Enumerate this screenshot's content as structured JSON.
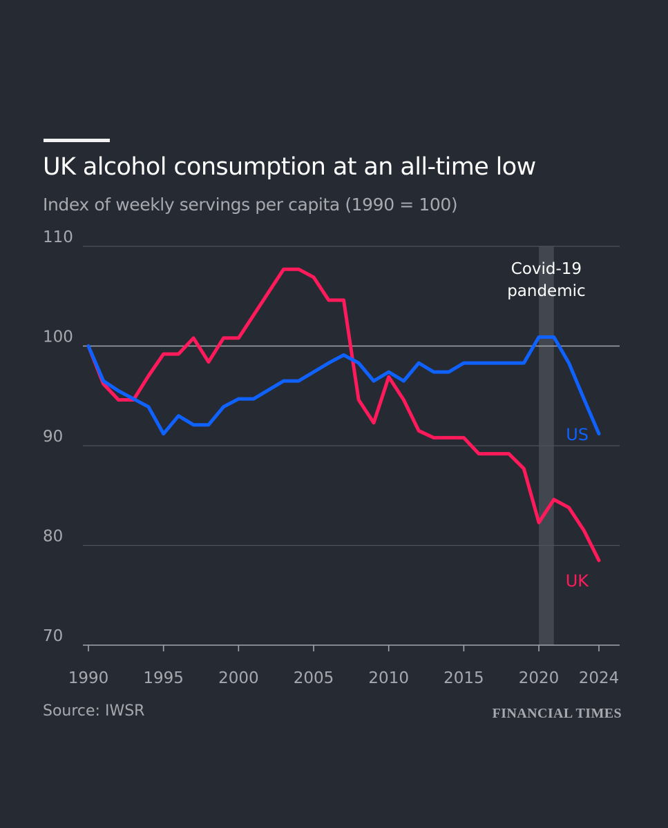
{
  "header": {
    "title": "UK alcohol consumption at an all-time low",
    "subtitle": "Index of weekly servings per capita (1990 = 100)"
  },
  "footer": {
    "source": "Source: IWSR",
    "brand": "FINANCIAL TIMES"
  },
  "colors": {
    "background": "#262a33",
    "uk": "#ff1a5c",
    "us": "#0f62fe",
    "grid": "#4e525b",
    "baseline": "#a3a6ac",
    "shade": "#42464e",
    "tick_text": "#a7a9af",
    "annotation_text": "#ffffff"
  },
  "chart_data": {
    "type": "line",
    "title": "UK alcohol consumption at an all-time low",
    "subtitle": "Index of weekly servings per capita (1990 = 100)",
    "xlim": [
      1990,
      2024
    ],
    "ylim": [
      70,
      110
    ],
    "x_ticks": [
      1990,
      1995,
      2000,
      2005,
      2010,
      2015,
      2020,
      2024
    ],
    "y_ticks": [
      70,
      80,
      90,
      100,
      110
    ],
    "baseline": 100,
    "grid": true,
    "legend": "direct labels at line ends",
    "x": [
      1990,
      1991,
      1992,
      1993,
      1994,
      1995,
      1996,
      1997,
      1998,
      1999,
      2000,
      2001,
      2002,
      2003,
      2004,
      2005,
      2006,
      2007,
      2008,
      2009,
      2010,
      2011,
      2012,
      2013,
      2014,
      2015,
      2016,
      2017,
      2018,
      2019,
      2020,
      2021,
      2022,
      2023,
      2024
    ],
    "series": [
      {
        "name": "UK",
        "color": "#ff1a5c",
        "values": [
          100,
          96.2,
          94.6,
          94.6,
          97.0,
          99.2,
          99.2,
          100.8,
          98.4,
          100.8,
          100.8,
          103.1,
          105.4,
          107.7,
          107.7,
          106.9,
          104.6,
          104.6,
          94.6,
          92.3,
          96.9,
          94.6,
          91.5,
          90.8,
          90.8,
          90.8,
          89.2,
          89.2,
          89.2,
          87.7,
          82.3,
          84.6,
          83.8,
          81.5,
          78.5
        ]
      },
      {
        "name": "US",
        "color": "#0f62fe",
        "values": [
          100,
          96.5,
          95.5,
          94.7,
          93.9,
          91.2,
          93.0,
          92.1,
          92.1,
          93.9,
          94.7,
          94.7,
          95.6,
          96.5,
          96.5,
          97.4,
          98.3,
          99.1,
          98.3,
          96.5,
          97.4,
          96.5,
          98.3,
          97.4,
          97.4,
          98.3,
          98.3,
          98.3,
          98.3,
          98.3,
          100.9,
          100.9,
          98.3,
          94.7,
          91.2
        ]
      }
    ],
    "annotations": [
      {
        "label_lines": [
          "Covid-19",
          "pandemic"
        ],
        "x_start": 2020,
        "x_end": 2021
      }
    ]
  }
}
